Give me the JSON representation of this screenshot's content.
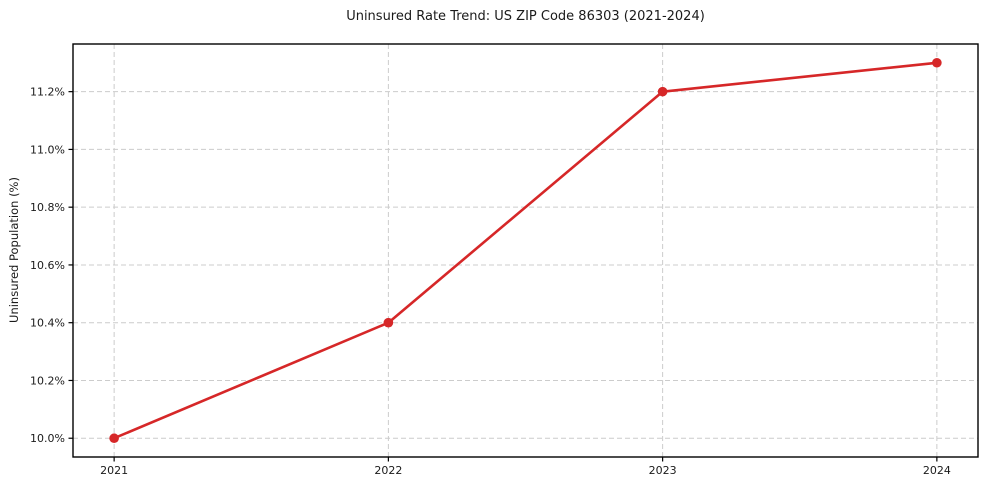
{
  "chart_data": {
    "type": "line",
    "title": "Uninsured Rate Trend: US ZIP Code 86303 (2021-2024)",
    "xlabel": "",
    "ylabel": "Uninsured Population (%)",
    "x": [
      2021,
      2022,
      2023,
      2024
    ],
    "values": [
      10.0,
      10.4,
      11.2,
      11.3
    ],
    "xlim": [
      2020.85,
      2024.15
    ],
    "ylim": [
      9.935,
      11.365
    ],
    "xticks": [
      2021,
      2022,
      2023,
      2024
    ],
    "xtick_labels": [
      "2021",
      "2022",
      "2023",
      "2024"
    ],
    "yticks": [
      10.0,
      10.2,
      10.4,
      10.6,
      10.8,
      11.0,
      11.2
    ],
    "ytick_labels": [
      "10.0%",
      "10.2%",
      "10.4%",
      "10.6%",
      "10.8%",
      "11.0%",
      "11.2%"
    ],
    "grid": true,
    "legend": "none",
    "line_color": "#d62728",
    "marker": "circle",
    "marker_color": "#d62728",
    "grid_color": "#cccccc",
    "frame_color": "#000000"
  }
}
